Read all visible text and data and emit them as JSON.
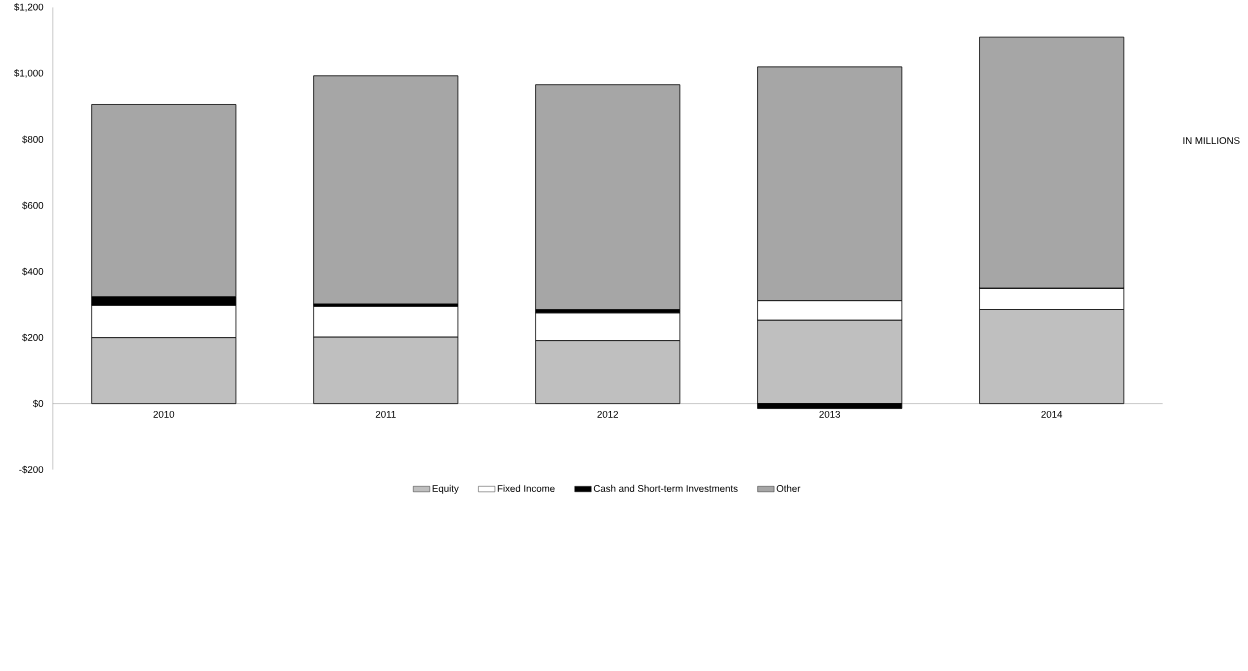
{
  "chart_data": {
    "type": "bar",
    "stacked": true,
    "legend": "bottom",
    "categories": [
      "2010",
      "2011",
      "2012",
      "2013",
      "2014"
    ],
    "series": [
      {
        "name": "Equity",
        "color": "#bfbfbf",
        "values": [
          200,
          202,
          191,
          253,
          285
        ]
      },
      {
        "name": "Fixed Income",
        "color": "#ffffff",
        "values": [
          98,
          93,
          84,
          59,
          65
        ]
      },
      {
        "name": "Cash and Short-term Investments",
        "color": "#000000",
        "values": [
          26,
          7,
          10,
          -15,
          0
        ]
      },
      {
        "name": "Other",
        "color": "#a6a6a6",
        "values": [
          582,
          691,
          681,
          708,
          760
        ]
      }
    ],
    "ylim": [
      -200,
      1200
    ],
    "yticks": [
      {
        "value": -200,
        "label": "-$200"
      },
      {
        "value": 0,
        "label": "$0"
      },
      {
        "value": 200,
        "label": "$200"
      },
      {
        "value": 400,
        "label": "$400"
      },
      {
        "value": 600,
        "label": "$600"
      },
      {
        "value": 800,
        "label": "$800"
      },
      {
        "value": 1000,
        "label": "$1,000"
      },
      {
        "value": 1200,
        "label": "$1,200"
      }
    ],
    "annotations": [
      "IN MILLIONS"
    ]
  }
}
